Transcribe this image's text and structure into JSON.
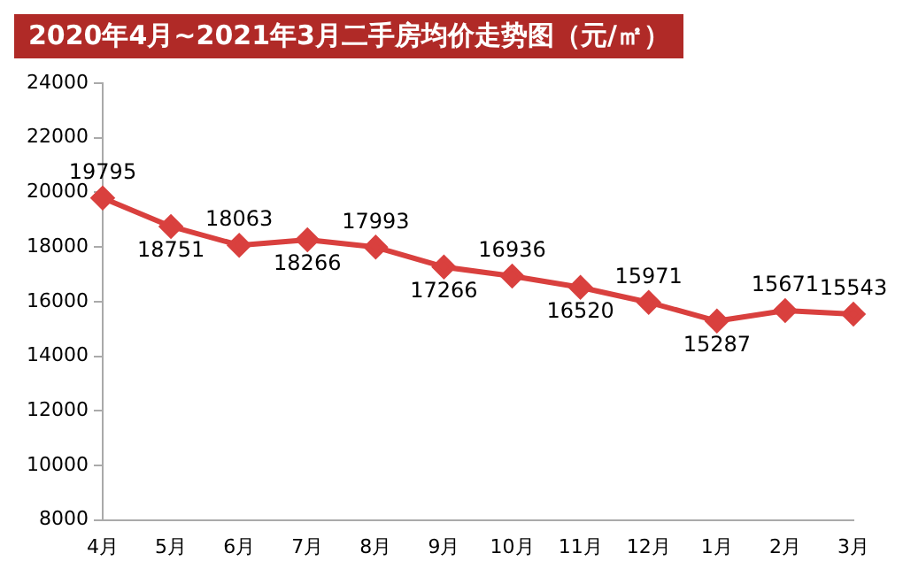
{
  "chart_data": {
    "type": "line",
    "title": "2020年4月~2021年3月二手房均价走势图（元/㎡）",
    "categories": [
      "4月",
      "5月",
      "6月",
      "7月",
      "8月",
      "9月",
      "10月",
      "11月",
      "12月",
      "1月",
      "2月",
      "3月"
    ],
    "series": [
      {
        "color": "#d9403e",
        "values": [
          19795,
          18751,
          18063,
          18266,
          17993,
          17266,
          16936,
          16520,
          15971,
          15287,
          15671,
          15543
        ]
      }
    ],
    "ylim": [
      8000,
      24000
    ],
    "yticks": [
      8000,
      10000,
      12000,
      14000,
      16000,
      18000,
      20000,
      22000,
      24000
    ],
    "grid": false,
    "legend": false,
    "marker": "diamond",
    "line_style": "solid",
    "data_labels": true
  }
}
